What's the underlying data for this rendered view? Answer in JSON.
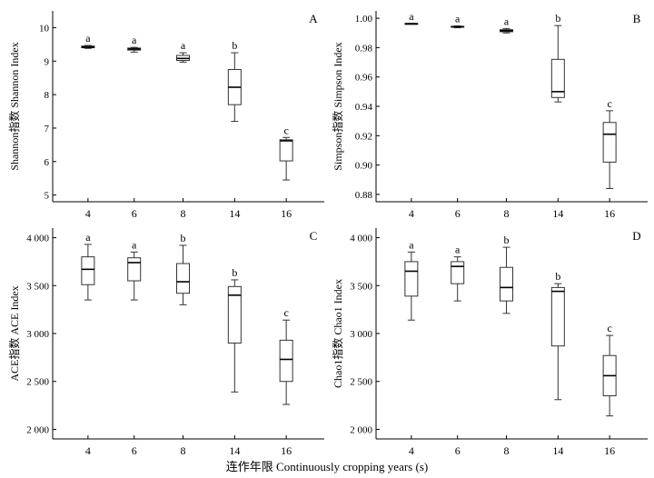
{
  "figure": {
    "x_axis_title": "连作年限 Continuously cropping years (s)"
  },
  "chart_data": [
    {
      "type": "box",
      "panel_label": "A",
      "ylabel": "Shannon指数 Shannon Index",
      "categories": [
        "4",
        "6",
        "8",
        "14",
        "16"
      ],
      "ylim": [
        4.8,
        10.5
      ],
      "yticks": [
        5,
        6,
        7,
        8,
        9,
        10
      ],
      "ytick_labels": [
        "5",
        "6",
        "7",
        "8",
        "9",
        "10"
      ],
      "boxes": [
        {
          "min": 9.38,
          "q1": 9.4,
          "median": 9.42,
          "q3": 9.45,
          "max": 9.47,
          "letter": "a"
        },
        {
          "min": 9.27,
          "q1": 9.33,
          "median": 9.36,
          "q3": 9.39,
          "max": 9.41,
          "letter": "a"
        },
        {
          "min": 8.97,
          "q1": 9.02,
          "median": 9.08,
          "q3": 9.17,
          "max": 9.25,
          "letter": "a"
        },
        {
          "min": 7.2,
          "q1": 7.7,
          "median": 8.22,
          "q3": 8.75,
          "max": 9.25,
          "letter": "b"
        },
        {
          "min": 5.45,
          "q1": 6.02,
          "median": 6.62,
          "q3": 6.65,
          "max": 6.72,
          "letter": "c"
        }
      ]
    },
    {
      "type": "box",
      "panel_label": "B",
      "ylabel": "Simpson指数 Simpson Index",
      "categories": [
        "4",
        "6",
        "8",
        "14",
        "16"
      ],
      "ylim": [
        0.875,
        1.005
      ],
      "yticks": [
        0.88,
        0.9,
        0.92,
        0.94,
        0.96,
        0.98,
        1.0
      ],
      "ytick_labels": [
        "0.88",
        "0.90",
        "0.92",
        "0.94",
        "0.96",
        "0.98",
        "1.00"
      ],
      "boxes": [
        {
          "min": 0.9962,
          "q1": 0.9962,
          "median": 0.9963,
          "q3": 0.9964,
          "max": 0.9964,
          "letter": "a"
        },
        {
          "min": 0.9935,
          "q1": 0.9939,
          "median": 0.9942,
          "q3": 0.9945,
          "max": 0.9948,
          "letter": "a"
        },
        {
          "min": 0.99,
          "q1": 0.9908,
          "median": 0.9915,
          "q3": 0.9922,
          "max": 0.993,
          "letter": "a"
        },
        {
          "min": 0.943,
          "q1": 0.946,
          "median": 0.95,
          "q3": 0.972,
          "max": 0.995,
          "letter": "b"
        },
        {
          "min": 0.884,
          "q1": 0.902,
          "median": 0.921,
          "q3": 0.929,
          "max": 0.937,
          "letter": "c"
        }
      ]
    },
    {
      "type": "box",
      "panel_label": "C",
      "ylabel": "ACE指数 ACE Index",
      "categories": [
        "4",
        "6",
        "8",
        "14",
        "16"
      ],
      "ylim": [
        1900,
        4100
      ],
      "yticks": [
        2000,
        2500,
        3000,
        3500,
        4000
      ],
      "ytick_labels": [
        "2 000",
        "2 500",
        "3 000",
        "3 500",
        "4 000"
      ],
      "boxes": [
        {
          "min": 3350,
          "q1": 3510,
          "median": 3670,
          "q3": 3800,
          "max": 3930,
          "letter": "a"
        },
        {
          "min": 3350,
          "q1": 3550,
          "median": 3740,
          "q3": 3790,
          "max": 3850,
          "letter": "a"
        },
        {
          "min": 3300,
          "q1": 3420,
          "median": 3540,
          "q3": 3730,
          "max": 3920,
          "letter": "b"
        },
        {
          "min": 2390,
          "q1": 2900,
          "median": 3400,
          "q3": 3490,
          "max": 3560,
          "letter": "b"
        },
        {
          "min": 2260,
          "q1": 2500,
          "median": 2730,
          "q3": 2930,
          "max": 3140,
          "letter": "c"
        }
      ]
    },
    {
      "type": "box",
      "panel_label": "D",
      "ylabel": "Chao1指数 Chao1 Index",
      "categories": [
        "4",
        "6",
        "8",
        "14",
        "16"
      ],
      "ylim": [
        1900,
        4100
      ],
      "yticks": [
        2000,
        2500,
        3000,
        3500,
        4000
      ],
      "ytick_labels": [
        "2 000",
        "2 500",
        "3 000",
        "3 500",
        "4 000"
      ],
      "boxes": [
        {
          "min": 3140,
          "q1": 3390,
          "median": 3650,
          "q3": 3750,
          "max": 3850,
          "letter": "a"
        },
        {
          "min": 3340,
          "q1": 3520,
          "median": 3700,
          "q3": 3750,
          "max": 3800,
          "letter": "a"
        },
        {
          "min": 3210,
          "q1": 3340,
          "median": 3480,
          "q3": 3690,
          "max": 3900,
          "letter": "b"
        },
        {
          "min": 2310,
          "q1": 2870,
          "median": 3440,
          "q3": 3480,
          "max": 3520,
          "letter": "b"
        },
        {
          "min": 2140,
          "q1": 2350,
          "median": 2560,
          "q3": 2770,
          "max": 2980,
          "letter": "c"
        }
      ]
    }
  ]
}
